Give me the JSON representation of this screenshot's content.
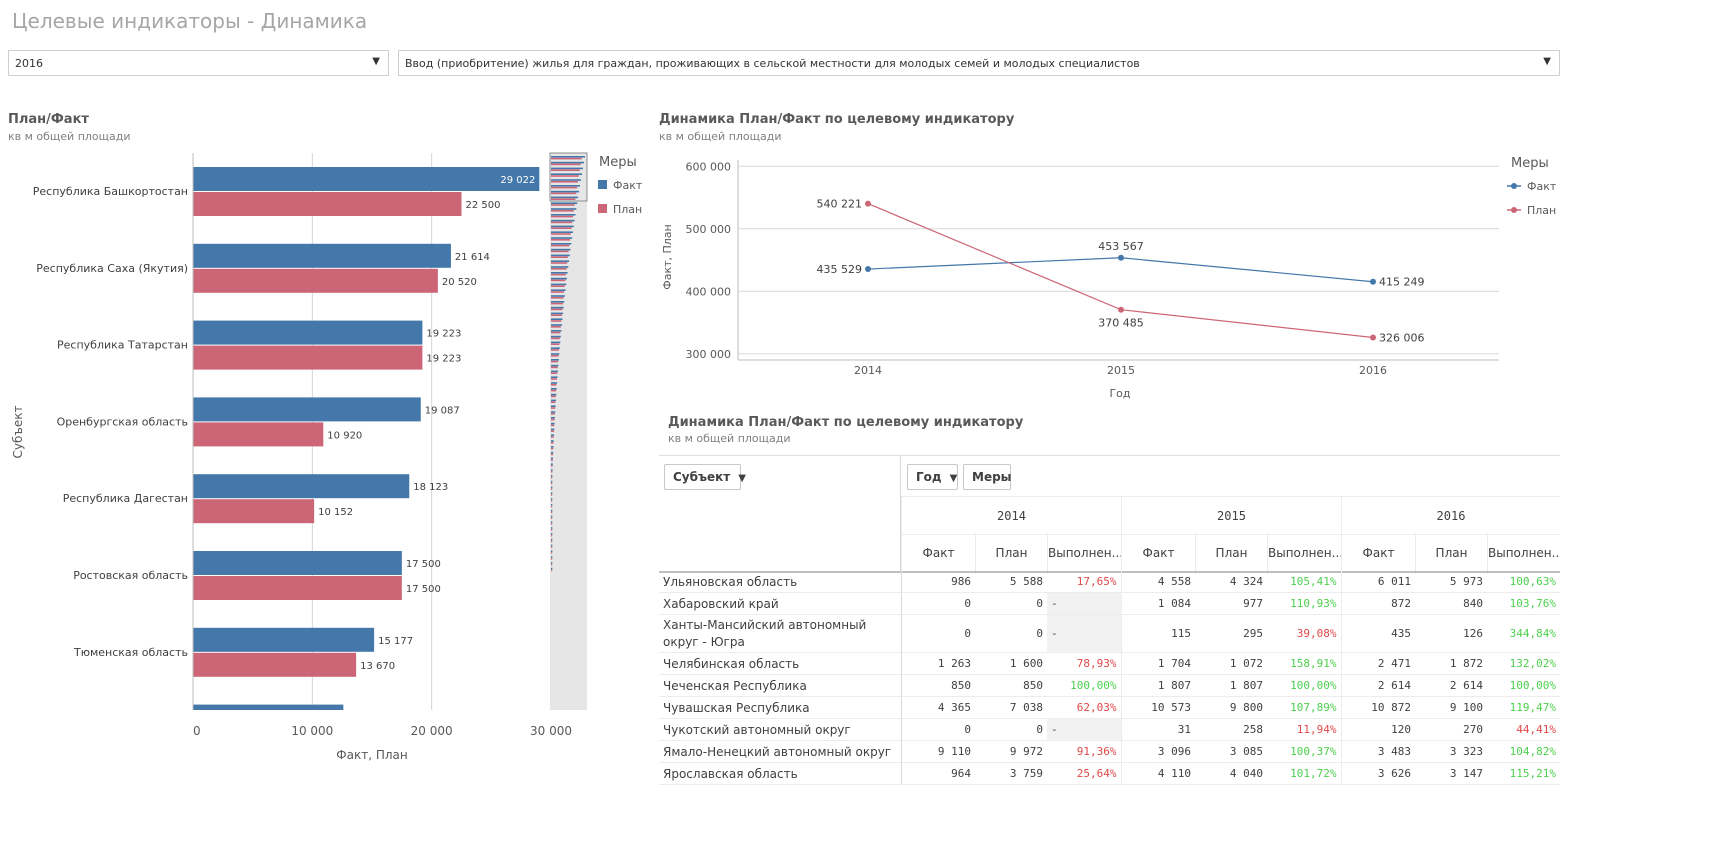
{
  "page": {
    "title": "Целевые индикаторы - Динамика",
    "year_select": "2016",
    "indicator_select": "Ввод (приобритение) жилья для граждан, проживающих в сельской местности для молодых семей и молодых специалистов"
  },
  "colors": {
    "fact": "#4477aa",
    "plan": "#cc6677",
    "good": "#4cd04c",
    "bad": "#e04848"
  },
  "bar_panel": {
    "title": "План/Факт",
    "subtitle": "кв м общей площади",
    "legend_title": "Меры"
  },
  "line_panel": {
    "title": "Динамика План/Факт по целевому индикатору",
    "subtitle": "кв м общей площади",
    "legend_title": "Меры"
  },
  "table_panel": {
    "title": "Динамика План/Факт по целевому индикатору",
    "subtitle": "кв м общей площади",
    "btn_subject": "Субъект",
    "btn_year": "Год",
    "btn_measures": "Меры",
    "years": [
      "2014",
      "2015",
      "2016"
    ],
    "measures": [
      "Факт",
      "План",
      "Выполнен..."
    ],
    "rows": [
      {
        "name": "Ульяновская область",
        "cells": [
          "986",
          "5 588",
          "17,65%",
          "4 558",
          "4 324",
          "105,41%",
          "6 011",
          "5 973",
          "100,63%"
        ],
        "status": [
          "bad",
          "good",
          "good"
        ]
      },
      {
        "name": "Хабаровский край",
        "cells": [
          "0",
          "0",
          "-",
          "1 084",
          "977",
          "110,93%",
          "872",
          "840",
          "103,76%"
        ],
        "status": [
          "none",
          "good",
          "good"
        ]
      },
      {
        "name": "Ханты-Мансийский автономный округ - Югра",
        "cells": [
          "0",
          "0",
          "-",
          "115",
          "295",
          "39,08%",
          "435",
          "126",
          "344,84%"
        ],
        "status": [
          "none",
          "bad",
          "good"
        ]
      },
      {
        "name": "Челябинская область",
        "cells": [
          "1 263",
          "1 600",
          "78,93%",
          "1 704",
          "1 072",
          "158,91%",
          "2 471",
          "1 872",
          "132,02%"
        ],
        "status": [
          "bad",
          "good",
          "good"
        ]
      },
      {
        "name": "Чеченская Республика",
        "cells": [
          "850",
          "850",
          "100,00%",
          "1 807",
          "1 807",
          "100,00%",
          "2 614",
          "2 614",
          "100,00%"
        ],
        "status": [
          "good",
          "good",
          "good"
        ]
      },
      {
        "name": "Чувашская Республика",
        "cells": [
          "4 365",
          "7 038",
          "62,03%",
          "10 573",
          "9 800",
          "107,89%",
          "10 872",
          "9 100",
          "119,47%"
        ],
        "status": [
          "bad",
          "good",
          "good"
        ]
      },
      {
        "name": "Чукотский автономный округ",
        "cells": [
          "0",
          "0",
          "-",
          "31",
          "258",
          "11,94%",
          "120",
          "270",
          "44,41%"
        ],
        "status": [
          "none",
          "bad",
          "bad"
        ]
      },
      {
        "name": "Ямало-Ненецкий автономный округ",
        "cells": [
          "9 110",
          "9 972",
          "91,36%",
          "3 096",
          "3 085",
          "100,37%",
          "3 483",
          "3 323",
          "104,82%"
        ],
        "status": [
          "bad",
          "good",
          "good"
        ]
      },
      {
        "name": "Ярославская область",
        "cells": [
          "964",
          "3 759",
          "25,64%",
          "4 110",
          "4 040",
          "101,72%",
          "3 626",
          "3 147",
          "115,21%"
        ],
        "status": [
          "bad",
          "good",
          "good"
        ]
      }
    ]
  },
  "chart_data": [
    {
      "type": "bar",
      "orientation": "horizontal",
      "categories": [
        "Республика Башкортостан",
        "Республика Саха (Якутия)",
        "Республика Татарстан",
        "Оренбургская область",
        "Республика Дагестан",
        "Ростовская область",
        "Тюменская область"
      ],
      "series": [
        {
          "name": "Факт",
          "values": [
            29022,
            21614,
            19223,
            19087,
            18123,
            17500,
            15177
          ]
        },
        {
          "name": "План",
          "values": [
            22500,
            20520,
            19223,
            10920,
            10152,
            17500,
            13670
          ]
        }
      ],
      "data_labels": {
        "Факт": [
          "29 022",
          "21 614",
          "19 223",
          "19 087",
          "18 123",
          "17 500",
          "15 177"
        ],
        "План": [
          "22 500",
          "20 520",
          "19 223",
          "10 920",
          "10 152",
          "17 500",
          "13 670"
        ]
      },
      "partial_next_bar": {
        "series": "Факт",
        "value": 12600
      },
      "xlim": [
        0,
        30000
      ],
      "x_ticks": [
        0,
        10000,
        20000,
        30000
      ],
      "x_tick_labels": [
        "0",
        "10 000",
        "20 000",
        "30 000"
      ],
      "xlabel": "Факт, План",
      "ylabel": "Субъект",
      "grid": true,
      "legend": "right",
      "legend_entries": [
        "Факт",
        "План"
      ]
    },
    {
      "type": "line",
      "x": [
        "2014",
        "2015",
        "2016"
      ],
      "series": [
        {
          "name": "Факт",
          "values": [
            435529,
            453567,
            415249
          ],
          "labels": [
            "435 529",
            "453 567",
            "415 249"
          ]
        },
        {
          "name": "План",
          "values": [
            540221,
            370485,
            326006
          ],
          "labels": [
            "540 221",
            "370 485",
            "326 006"
          ]
        }
      ],
      "ylim": [
        290000,
        610000
      ],
      "y_ticks": [
        300000,
        400000,
        500000,
        600000
      ],
      "y_tick_labels": [
        "300 000",
        "400 000",
        "500 000",
        "600 000"
      ],
      "xlabel": "Год",
      "ylabel": "Факт, План",
      "grid": true,
      "legend": "right",
      "legend_entries": [
        "Факт",
        "План"
      ]
    }
  ]
}
